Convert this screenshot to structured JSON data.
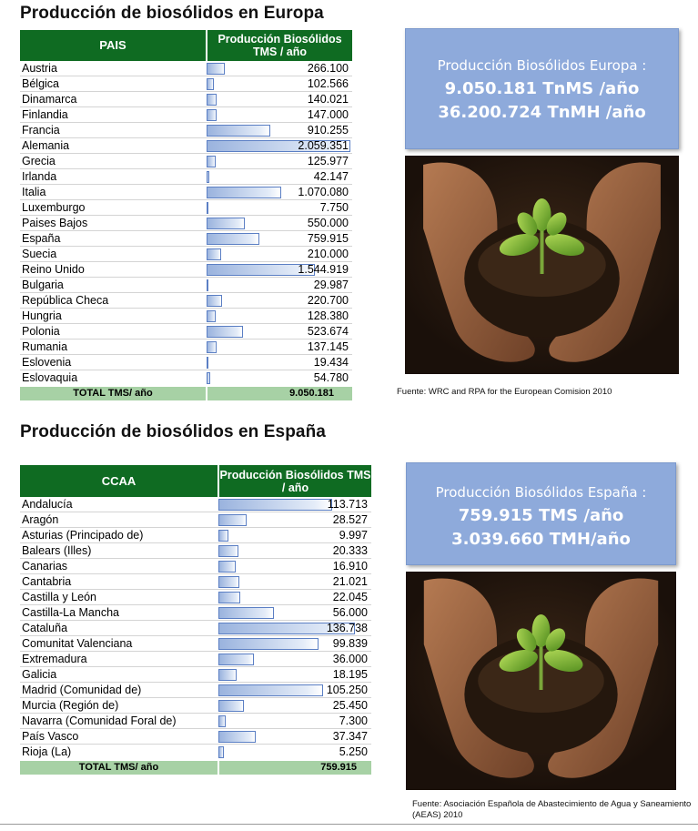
{
  "europe": {
    "title": "Producción de biosólidos en Europa",
    "table": {
      "col_country": "PAIS",
      "col_value": "Producción Biosólidos TMS / año",
      "max_value": 2059351,
      "rows": [
        {
          "name": "Austria",
          "value": "266.100",
          "num": 266100
        },
        {
          "name": "Bélgica",
          "value": "102.566",
          "num": 102566
        },
        {
          "name": "Dinamarca",
          "value": "140.021",
          "num": 140021
        },
        {
          "name": "Finlandia",
          "value": "147.000",
          "num": 147000
        },
        {
          "name": "Francia",
          "value": "910.255",
          "num": 910255
        },
        {
          "name": "Alemania",
          "value": "2.059.351",
          "num": 2059351
        },
        {
          "name": "Grecia",
          "value": "125.977",
          "num": 125977
        },
        {
          "name": "Irlanda",
          "value": "42.147",
          "num": 42147
        },
        {
          "name": "Italia",
          "value": "1.070.080",
          "num": 1070080
        },
        {
          "name": "Luxemburgo",
          "value": "7.750",
          "num": 7750
        },
        {
          "name": "Paises Bajos",
          "value": "550.000",
          "num": 550000
        },
        {
          "name": "España",
          "value": "759.915",
          "num": 759915
        },
        {
          "name": "Suecia",
          "value": "210.000",
          "num": 210000
        },
        {
          "name": "Reino Unido",
          "value": "1.544.919",
          "num": 1544919
        },
        {
          "name": "Bulgaria",
          "value": "29.987",
          "num": 29987
        },
        {
          "name": "República Checa",
          "value": "220.700",
          "num": 220700
        },
        {
          "name": "Hungria",
          "value": "128.380",
          "num": 128380
        },
        {
          "name": "Polonia",
          "value": "523.674",
          "num": 523674
        },
        {
          "name": "Rumania",
          "value": "137.145",
          "num": 137145
        },
        {
          "name": "Eslovenia",
          "value": "19.434",
          "num": 19434
        },
        {
          "name": "Eslovaquia",
          "value": "54.780",
          "num": 54780
        }
      ],
      "total_label": "TOTAL TMS/ año",
      "total_value": "9.050.181"
    },
    "summary": {
      "line1": "Producción Biosólidos Europa :",
      "line2": "9.050.181 TnMS /año",
      "line3": "36.200.724 TnMH /año"
    },
    "source": "Fuente: WRC and RPA for the European Comision 2010"
  },
  "spain": {
    "title": "Producción de biosólidos en España",
    "table": {
      "col_region": "CCAA",
      "col_value": "Producción Biosólidos TMS / año",
      "max_value": 136738,
      "rows": [
        {
          "name": "Andalucía",
          "value": "113.713",
          "num": 113713
        },
        {
          "name": "Aragón",
          "value": "28.527",
          "num": 28527
        },
        {
          "name": "Asturias (Principado de)",
          "value": "9.997",
          "num": 9997
        },
        {
          "name": "Balears (Illes)",
          "value": "20.333",
          "num": 20333
        },
        {
          "name": "Canarias",
          "value": "16.910",
          "num": 16910
        },
        {
          "name": "Cantabria",
          "value": "21.021",
          "num": 21021
        },
        {
          "name": "Castilla y León",
          "value": "22.045",
          "num": 22045
        },
        {
          "name": "Castilla-La Mancha",
          "value": "56.000",
          "num": 56000
        },
        {
          "name": "Cataluña",
          "value": "136.738",
          "num": 136738
        },
        {
          "name": "Comunitat Valenciana",
          "value": "99.839",
          "num": 99839
        },
        {
          "name": "Extremadura",
          "value": "36.000",
          "num": 36000
        },
        {
          "name": "Galicia",
          "value": "18.195",
          "num": 18195
        },
        {
          "name": "Madrid (Comunidad de)",
          "value": "105.250",
          "num": 105250
        },
        {
          "name": "Murcia (Región de)",
          "value": "25.450",
          "num": 25450
        },
        {
          "name": "Navarra (Comunidad Foral de)",
          "value": "7.300",
          "num": 7300
        },
        {
          "name": "País Vasco",
          "value": "37.347",
          "num": 37347
        },
        {
          "name": "Rioja (La)",
          "value": "5.250",
          "num": 5250
        }
      ],
      "total_label": "TOTAL TMS/ año",
      "total_value": "759.915"
    },
    "summary": {
      "line1": "Producción Biosólidos  España :",
      "line2": "759.915 TMS /año",
      "line3": "3.039.660 TMH/año"
    },
    "source": "Fuente: Asociación Española de Abastecimiento de Agua y Saneamiento (AEAS) 2010"
  },
  "colors": {
    "header_green": "#0f6b22",
    "total_green": "#a7d1a5",
    "summary_blue": "#8eaadb",
    "bar_border": "#5b7fc4"
  },
  "images": {
    "photo": "hands-holding-soil-seedling-image"
  }
}
